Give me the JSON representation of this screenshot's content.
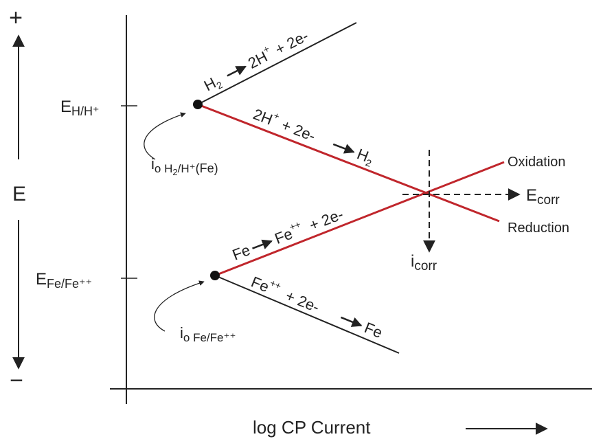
{
  "diagram": {
    "potential_axis": {
      "label": "E",
      "plus": "+",
      "minus": "−"
    },
    "current_axis": {
      "label": "log CP Current"
    },
    "equilibria": {
      "hydrogen": {
        "base": "E",
        "sub": "H/H⁺"
      },
      "iron": {
        "base": "E",
        "sub": "Fe/Fe⁺⁺"
      }
    },
    "exchange_currents": {
      "hydrogen": {
        "base": "i",
        "sub": "o H",
        "sub2": "2",
        "sub3": "/H⁺",
        "tail": "(Fe)"
      },
      "iron": {
        "base": "i",
        "sub": "o Fe/Fe⁺⁺"
      }
    },
    "reactions": {
      "h2_oxidation": {
        "left": "H",
        "left_sub": "2",
        "right": "2H",
        "right_sup": "+",
        "tail": "+ 2e-"
      },
      "h_reduction": {
        "left": "2H",
        "left_sup": "+",
        "mid": "+ 2e-",
        "right": "H",
        "right_sub": "2"
      },
      "fe_oxidation": {
        "left": "Fe",
        "right": "Fe",
        "right_sup": "++",
        "tail": "+ 2e-"
      },
      "fe_reduction": {
        "left": "Fe",
        "left_sup": "++",
        "mid": "+ 2e-",
        "right": "Fe"
      }
    },
    "corrosion": {
      "e_corr": {
        "base": "E",
        "sub": "corr"
      },
      "i_corr": {
        "base": "i",
        "sub": "corr"
      }
    },
    "branch_labels": {
      "oxidation": "Oxidation",
      "reduction": "Reduction"
    },
    "colors": {
      "ink": "#222222",
      "mixed_potential_lines": "#c0262c"
    }
  }
}
